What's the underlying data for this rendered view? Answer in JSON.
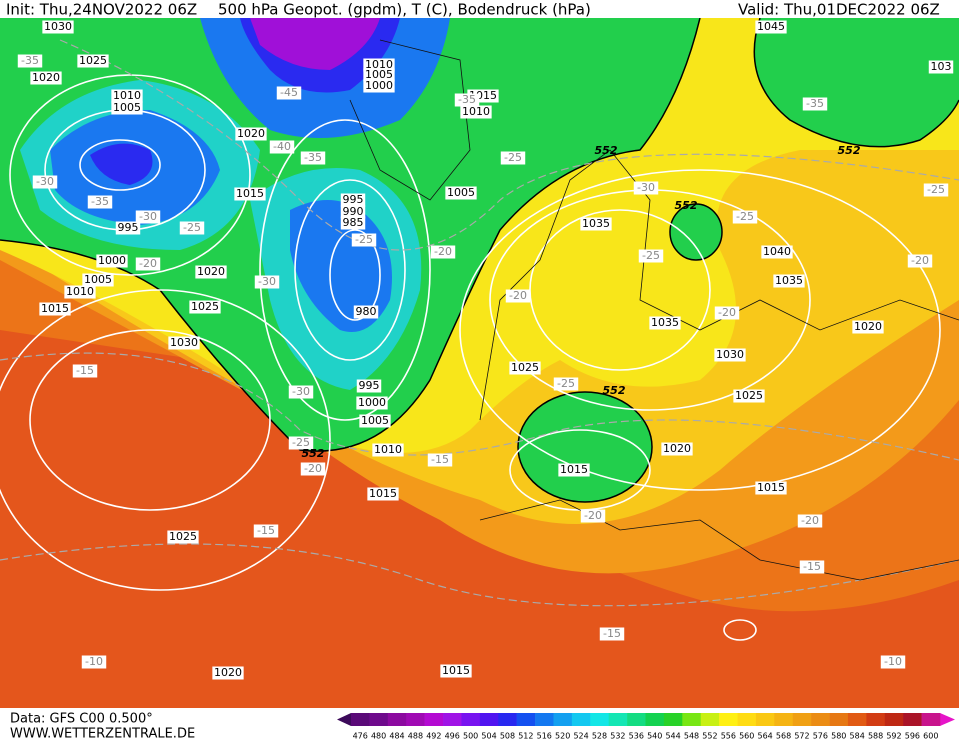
{
  "header": {
    "init": "Init: Thu,24NOV2022 06Z",
    "title": "500 hPa Geopot. (gpdm), T (C), Bodendruck (hPa)",
    "valid": "Valid: Thu,01DEC2022 06Z"
  },
  "footer": {
    "data": "Data: GFS C00 0.500°",
    "site": "WWW.WETTERZENTRALE.DE"
  },
  "colorbar": {
    "values": [
      476,
      480,
      484,
      488,
      492,
      496,
      500,
      504,
      508,
      512,
      516,
      520,
      524,
      528,
      532,
      536,
      540,
      544,
      548,
      552,
      556,
      560,
      564,
      568,
      572,
      576,
      580,
      584,
      588,
      592,
      596,
      600
    ],
    "colors": [
      "#5a0a78",
      "#6e0a8c",
      "#8c0aa0",
      "#a00ab4",
      "#b40ad2",
      "#a014e6",
      "#7814f0",
      "#5014f0",
      "#2828f0",
      "#1450f0",
      "#1478f0",
      "#14a0f0",
      "#14c8f0",
      "#14e6e6",
      "#14e6b4",
      "#14dc82",
      "#14d250",
      "#28d228",
      "#78e614",
      "#c8f014",
      "#fff014",
      "#ffdc14",
      "#fac814",
      "#f5b414",
      "#f0a014",
      "#eb8c14",
      "#e67814",
      "#e15a14",
      "#d23c14",
      "#be2814",
      "#aa1428",
      "#c8148c"
    ]
  },
  "map": {
    "isobars": [
      "1030",
      "1025",
      "1020",
      "1010",
      "1005",
      "1010",
      "1005",
      "1000",
      "1015",
      "1010",
      "1020",
      "1015",
      "1005",
      "995",
      "990",
      "985",
      "995",
      "1000",
      "1005",
      "1010",
      "1015",
      "1020",
      "1025",
      "1030",
      "980",
      "995",
      "1000",
      "1005",
      "1010",
      "1015",
      "1025",
      "1020",
      "1015",
      "1035",
      "1035",
      "1040",
      "1035",
      "1030",
      "1020",
      "1025",
      "1025",
      "1020",
      "1015",
      "1015",
      "1045",
      "103"
    ],
    "temperatures": [
      "-35",
      "-45",
      "-40",
      "-35",
      "-30",
      "-35",
      "-30",
      "-25",
      "-20",
      "-30",
      "-25",
      "-20",
      "-35",
      "-25",
      "-30",
      "-25",
      "-25",
      "-20",
      "-20",
      "-20",
      "-25",
      "-35",
      "-25",
      "-30",
      "-25",
      "-20",
      "-15",
      "-15",
      "-15",
      "-20",
      "-20",
      "-15",
      "-15",
      "-10",
      "-10"
    ],
    "geopotential": [
      "552",
      "552",
      "552",
      "552",
      "552"
    ]
  }
}
